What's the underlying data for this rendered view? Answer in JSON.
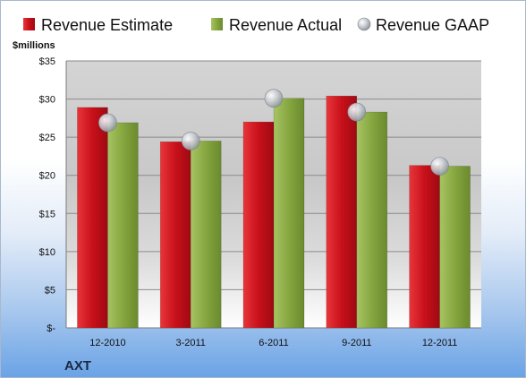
{
  "chart_data": {
    "type": "bar",
    "title": "",
    "ticker": "AXT",
    "unit_label": "$millions",
    "categories": [
      "12-2010",
      "3-2011",
      "6-2011",
      "9-2011",
      "12-2011"
    ],
    "series": [
      {
        "name": "Revenue Estimate",
        "kind": "bar",
        "color": "#d0141c",
        "values": [
          28.9,
          24.4,
          27.0,
          30.4,
          21.3
        ]
      },
      {
        "name": "Revenue Actual",
        "kind": "bar",
        "color": "#8fb04a",
        "values": [
          26.9,
          24.5,
          30.1,
          28.3,
          21.2
        ]
      },
      {
        "name": "Revenue GAAP",
        "kind": "marker",
        "color": "#bfc4cc",
        "values": [
          26.9,
          24.5,
          30.1,
          28.3,
          21.2
        ]
      }
    ],
    "yticks": [
      0,
      5,
      10,
      15,
      20,
      25,
      30,
      35
    ],
    "ytick_labels": [
      "$-",
      "$5",
      "$10",
      "$15",
      "$20",
      "$25",
      "$30",
      "$35"
    ],
    "ylim": [
      0,
      35
    ],
    "grid": true,
    "legend": "top"
  }
}
